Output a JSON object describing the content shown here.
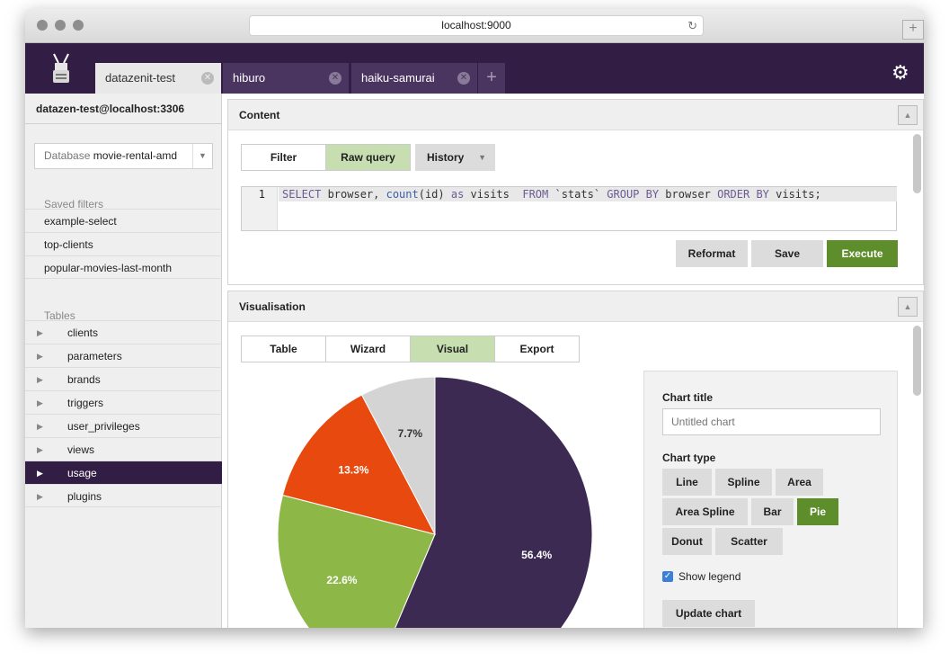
{
  "browser": {
    "url": "localhost:9000",
    "reload_icon": "reload-icon",
    "new_window_icon": "plus-icon"
  },
  "app": {
    "logo_icon": "robot-logo-icon",
    "tabs": [
      {
        "label": "datazenit-test",
        "active": true
      },
      {
        "label": "hiburo",
        "active": false
      },
      {
        "label": "haiku-samurai",
        "active": false
      }
    ],
    "add_tab": "+",
    "settings_icon": "gear-icon"
  },
  "sidebar": {
    "connection": "datazen-test@localhost:3306",
    "database_prefix": "Database",
    "database_name": "movie-rental-amd",
    "saved_filters_heading": "Saved filters",
    "saved_filters": [
      "example-select",
      "top-clients",
      "popular-movies-last-month"
    ],
    "tables_heading": "Tables",
    "tables": [
      "clients",
      "parameters",
      "brands",
      "triggers",
      "user_privileges",
      "views",
      "usage",
      "plugins"
    ],
    "selected_table": "usage"
  },
  "content": {
    "title": "Content",
    "tabs": [
      "Filter",
      "Raw query"
    ],
    "active_tab": "Raw query",
    "history_label": "History",
    "line_number": "1",
    "query": "SELECT browser, count(id) as visits  FROM `stats` GROUP BY browser ORDER BY visits;",
    "buttons": {
      "reformat": "Reformat",
      "save": "Save",
      "execute": "Execute"
    }
  },
  "visualisation": {
    "title": "Visualisation",
    "tabs": [
      "Table",
      "Wizard",
      "Visual",
      "Export"
    ],
    "active_tab": "Visual",
    "chart_title_label": "Chart title",
    "chart_title_placeholder": "Untitled chart",
    "chart_type_label": "Chart type",
    "chart_types": [
      "Line",
      "Spline",
      "Area",
      "Area Spline",
      "Bar",
      "Pie",
      "Donut",
      "Scatter"
    ],
    "selected_chart_type": "Pie",
    "show_legend_label": "Show legend",
    "show_legend": true,
    "update_button": "Update chart"
  },
  "chart_data": {
    "type": "pie",
    "values": [
      56.4,
      22.6,
      13.3,
      7.7
    ],
    "labels": [
      "56.4%",
      "22.6%",
      "13.3%",
      "7.7%"
    ],
    "colors": [
      "#3d2a52",
      "#8db848",
      "#e8490f",
      "#d4d4d4"
    ],
    "label_colors": [
      "#ffffff",
      "#ffffff",
      "#ffffff",
      "#333333"
    ]
  }
}
